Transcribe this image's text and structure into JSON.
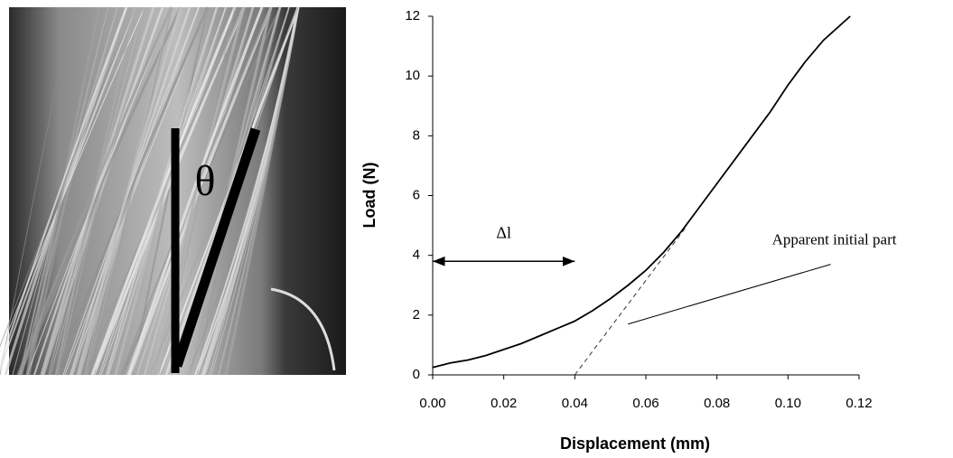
{
  "image": {
    "label": "θ"
  },
  "chart_data": {
    "type": "line",
    "xlabel": "Displacement (mm)",
    "ylabel": "Load (N)",
    "xlim": [
      0,
      0.12
    ],
    "ylim": [
      0,
      12
    ],
    "xticks": [
      {
        "value": 0,
        "label": "0.00"
      },
      {
        "value": 0.02,
        "label": "0.02"
      },
      {
        "value": 0.04,
        "label": "0.04"
      },
      {
        "value": 0.06,
        "label": "0.06"
      },
      {
        "value": 0.08,
        "label": "0.08"
      },
      {
        "value": 0.1,
        "label": "0.10"
      },
      {
        "value": 0.12,
        "label": "0.12"
      }
    ],
    "yticks": [
      0,
      2,
      4,
      6,
      8,
      10,
      12
    ],
    "series": [
      {
        "color": "#000000",
        "dashed": false,
        "x": [
          0,
          0.005,
          0.01,
          0.015,
          0.02,
          0.025,
          0.03,
          0.035,
          0.04,
          0.045,
          0.05,
          0.055,
          0.06,
          0.065,
          0.07,
          0.075,
          0.08,
          0.085,
          0.09,
          0.095,
          0.1,
          0.105,
          0.11,
          0.1175
        ],
        "values": [
          0.25,
          0.4,
          0.5,
          0.65,
          0.85,
          1.05,
          1.3,
          1.55,
          1.8,
          2.15,
          2.55,
          3.0,
          3.5,
          4.1,
          4.8,
          5.6,
          6.4,
          7.2,
          8.0,
          8.8,
          9.7,
          10.5,
          11.2,
          12.0
        ]
      },
      {
        "color": "#333333",
        "dashed": true,
        "x": [
          0.04,
          0.071
        ],
        "values": [
          0,
          4.9
        ]
      }
    ],
    "annotations": [
      {
        "text": "Δl",
        "x": [
          0,
          0.04
        ],
        "y": [
          3.8,
          3.8
        ]
      },
      {
        "text": "Apparent initial part",
        "x": [
          0.055,
          0.112
        ],
        "y": [
          1.7,
          3.7
        ]
      }
    ]
  }
}
